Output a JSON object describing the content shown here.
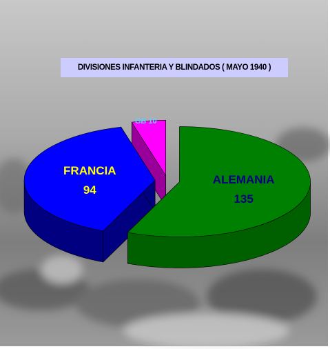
{
  "chart_data": {
    "type": "pie",
    "title": "DIVISIONES INFANTERIA Y BLINDADOS ( MAYO 1940 )",
    "categories": [
      "ALEMANIA",
      "FRANCIA",
      "GB"
    ],
    "values": [
      135,
      94,
      10
    ],
    "colors": [
      "#008000",
      "#0000ff",
      "#ff00ff"
    ],
    "side_colors": [
      "#006000",
      "#000080",
      "#990099"
    ],
    "label_colors": [
      "#000080",
      "#ffff00",
      "#66ccff"
    ],
    "exploded": true,
    "three_d": true
  }
}
